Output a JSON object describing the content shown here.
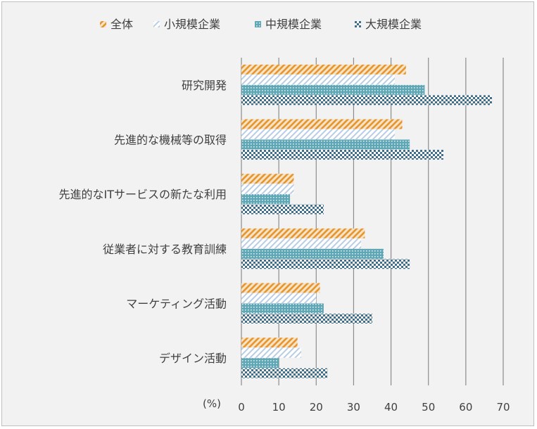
{
  "chart_data": {
    "type": "bar",
    "orientation": "horizontal",
    "title": "",
    "xlabel": "",
    "unit_label": "(%)",
    "xlim": [
      0,
      70
    ],
    "x_ticks": [
      0,
      10,
      20,
      30,
      40,
      50,
      60,
      70
    ],
    "grid": "vertical",
    "legend_position": "top",
    "categories": [
      "研究開発",
      "先進的な機械等の取得",
      "先進的なITサービスの新たな利用",
      "従業者に対する教育訓練",
      "マーケティング活動",
      "デザイン活動"
    ],
    "series": [
      {
        "name": "全体",
        "color": "#e6962e",
        "pattern": "diagonal-stripes",
        "values": [
          44,
          43,
          14,
          33,
          21,
          15
        ]
      },
      {
        "name": "小規模企業",
        "color": "#c9d9ec",
        "pattern": "light-diagonal-stripes",
        "values": [
          41,
          41,
          14,
          32,
          20,
          16
        ]
      },
      {
        "name": "中規模企業",
        "color": "#5fa7b5",
        "pattern": "dotted-grid",
        "values": [
          49,
          45,
          13,
          38,
          22,
          10
        ]
      },
      {
        "name": "大規模企業",
        "color": "#3f6f8c",
        "pattern": "checkerboard",
        "values": [
          67,
          54,
          22,
          45,
          35,
          23
        ]
      }
    ]
  }
}
